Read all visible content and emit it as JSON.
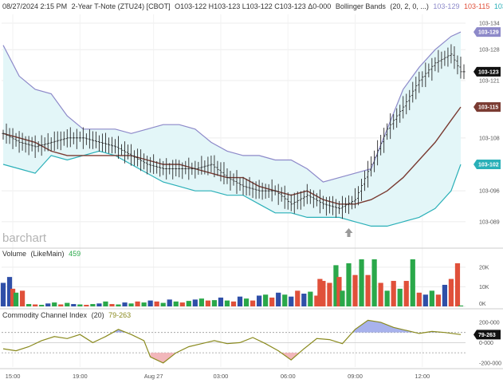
{
  "header": {
    "date": "08/27/2024 2:15 PM",
    "symbol": "2-Year T-Note (ZTU24) [CBOT]",
    "ohlc": "O103-122 H103-123 L103-122 C103-123 Δ0-000",
    "indicator": "Bollinger Bands",
    "params": "(20, 2, 0, ...)",
    "upper_value": "103-129",
    "middle_value": "103-115",
    "lower_value": "103-102"
  },
  "logo": "barchart",
  "colors": {
    "upper_band": "#8d89c9",
    "middle_band": "#7a3b32",
    "lower_band": "#2ab0b8",
    "band_fill": "#e3f6f8",
    "price_bar": "#2b2b2b",
    "price_tag": "#111111",
    "vol_up": "#2aa84a",
    "vol_down": "#e0503a",
    "vol_neutral": "#2f4fa8",
    "cci_line": "#8a8a1e",
    "cci_pos_fill": "#a8b2ec",
    "cci_neg_fill": "#f2b7bb",
    "grid": "#ececec"
  },
  "icons": {
    "arrow": "up-arrow-icon"
  },
  "chart_data": [
    {
      "type": "line",
      "panel": "price",
      "title": "",
      "yticks": [
        "103-134",
        "103-128",
        "103-121",
        "103-108",
        "103-096",
        "103-089"
      ],
      "ytick_values": [
        103.134,
        103.128,
        103.121,
        103.108,
        103.096,
        103.089
      ],
      "ylim": [
        103.085,
        103.136
      ],
      "xticks": [
        "15:00",
        "19:00",
        "Aug 27",
        "03:00",
        "06:00",
        "09:00",
        "12:00"
      ],
      "xtick_index": [
        3,
        24,
        47,
        68,
        89,
        110,
        131
      ],
      "n_bars": 145,
      "upper_band": {
        "name": "103-129",
        "x": [
          0,
          5,
          10,
          15,
          20,
          25,
          30,
          35,
          40,
          45,
          50,
          55,
          60,
          65,
          70,
          75,
          80,
          85,
          90,
          95,
          100,
          105,
          110,
          115,
          120,
          125,
          130,
          135,
          140,
          143
        ],
        "y": [
          103.129,
          103.122,
          103.119,
          103.118,
          103.113,
          103.11,
          103.11,
          103.11,
          103.109,
          103.11,
          103.111,
          103.111,
          103.11,
          103.107,
          103.105,
          103.104,
          103.104,
          103.103,
          103.103,
          103.101,
          103.098,
          103.099,
          103.1,
          103.101,
          103.11,
          103.119,
          103.124,
          103.128,
          103.131,
          103.132
        ]
      },
      "middle_band": {
        "name": "103-115",
        "x": [
          0,
          5,
          10,
          15,
          20,
          25,
          30,
          35,
          40,
          45,
          50,
          55,
          60,
          65,
          70,
          75,
          80,
          85,
          90,
          95,
          100,
          105,
          110,
          115,
          120,
          125,
          130,
          135,
          140,
          143
        ],
        "y": [
          103.109,
          103.108,
          103.107,
          103.105,
          103.104,
          103.104,
          103.104,
          103.104,
          103.104,
          103.103,
          103.102,
          103.102,
          103.101,
          103.1,
          103.099,
          103.099,
          103.097,
          103.096,
          103.095,
          103.096,
          103.094,
          103.093,
          103.093,
          103.094,
          103.096,
          103.099,
          103.103,
          103.107,
          103.112,
          103.115
        ]
      },
      "lower_band": {
        "name": "103-102",
        "x": [
          0,
          5,
          10,
          15,
          20,
          25,
          30,
          35,
          40,
          45,
          50,
          55,
          60,
          65,
          70,
          75,
          80,
          85,
          90,
          95,
          100,
          105,
          110,
          115,
          120,
          125,
          130,
          135,
          140,
          143
        ],
        "y": [
          103.102,
          103.101,
          103.1,
          103.104,
          103.103,
          103.104,
          103.105,
          103.104,
          103.102,
          103.1,
          103.098,
          103.097,
          103.096,
          103.096,
          103.095,
          103.095,
          103.093,
          103.091,
          103.091,
          103.09,
          103.09,
          103.09,
          103.089,
          103.088,
          103.088,
          103.089,
          103.09,
          103.092,
          103.096,
          103.102
        ]
      },
      "price_path": {
        "x": [
          0,
          5,
          10,
          15,
          20,
          25,
          30,
          35,
          40,
          45,
          50,
          55,
          60,
          65,
          70,
          75,
          80,
          85,
          90,
          95,
          100,
          105,
          110,
          115,
          120,
          125,
          130,
          135,
          140,
          143
        ],
        "y": [
          103.109,
          103.107,
          103.106,
          103.107,
          103.108,
          103.108,
          103.107,
          103.106,
          103.104,
          103.102,
          103.101,
          103.101,
          103.101,
          103.102,
          103.099,
          103.097,
          103.096,
          103.096,
          103.093,
          103.095,
          103.093,
          103.092,
          103.094,
          103.102,
          103.11,
          103.115,
          103.121,
          103.125,
          103.127,
          103.123
        ]
      },
      "last_price": "103-123",
      "last_value": 103.123,
      "annotation_index": 108
    },
    {
      "type": "bar",
      "panel": "volume",
      "title": "Volume",
      "subtitle": "(LikeMain)",
      "last_value": "459",
      "yticks": [
        "20K",
        "10K",
        "0K"
      ],
      "ytick_values": [
        20000,
        10000,
        0
      ],
      "ylim": [
        0,
        24000
      ],
      "x": [
        0,
        2,
        3,
        4,
        6,
        8,
        10,
        12,
        14,
        16,
        18,
        20,
        22,
        24,
        26,
        28,
        30,
        32,
        34,
        36,
        38,
        40,
        42,
        44,
        46,
        48,
        50,
        52,
        54,
        56,
        58,
        60,
        62,
        64,
        66,
        68,
        70,
        72,
        74,
        76,
        78,
        80,
        82,
        84,
        86,
        88,
        90,
        92,
        94,
        96,
        98,
        99,
        100,
        102,
        104,
        105,
        106,
        108,
        110,
        112,
        114,
        116,
        118,
        120,
        122,
        124,
        126,
        128,
        130,
        132,
        134,
        136,
        138,
        140,
        142,
        143
      ],
      "values": [
        12000,
        15000,
        9000,
        7000,
        8000,
        1200,
        1000,
        800,
        1500,
        2000,
        1000,
        1800,
        1200,
        1000,
        800,
        1200,
        1500,
        2500,
        1200,
        1000,
        2000,
        1500,
        2500,
        2000,
        3000,
        2500,
        1800,
        3500,
        2500,
        2000,
        2800,
        3500,
        4000,
        3000,
        3200,
        4500,
        3000,
        2500,
        5000,
        4000,
        3000,
        5500,
        6000,
        4500,
        7000,
        6000,
        5000,
        8000,
        6500,
        7500,
        5500,
        14000,
        13000,
        12000,
        21000,
        15000,
        8000,
        22000,
        16000,
        24000,
        16000,
        24000,
        12000,
        8000,
        13000,
        9000,
        13000,
        24000,
        7000,
        6000,
        8000,
        6000,
        11000,
        14000,
        22000,
        459
      ],
      "colors": [
        "n",
        "n",
        "d",
        "u",
        "d",
        "u",
        "d",
        "u",
        "n",
        "u",
        "d",
        "u",
        "n",
        "u",
        "d",
        "u",
        "n",
        "u",
        "d",
        "u",
        "n",
        "u",
        "d",
        "u",
        "n",
        "d",
        "u",
        "n",
        "u",
        "d",
        "u",
        "n",
        "u",
        "d",
        "u",
        "n",
        "u",
        "d",
        "n",
        "u",
        "d",
        "n",
        "u",
        "d",
        "n",
        "u",
        "n",
        "d",
        "n",
        "u",
        "d",
        "d",
        "d",
        "d",
        "u",
        "d",
        "u",
        "u",
        "d",
        "u",
        "d",
        "u",
        "d",
        "u",
        "d",
        "u",
        "d",
        "u",
        "d",
        "n",
        "u",
        "d",
        "n",
        "d",
        "d",
        "u"
      ]
    },
    {
      "type": "line",
      "panel": "cci",
      "title": "Commodity Channel Index",
      "subtitle": "(20)",
      "last_value": "79-263",
      "yticks": [
        "200-000",
        "0-000",
        "-200-000"
      ],
      "ytick_values": [
        200,
        0,
        -200
      ],
      "reference_lines": [
        100,
        -100
      ],
      "ylim": [
        -240,
        270
      ],
      "x": [
        0,
        4,
        8,
        12,
        16,
        20,
        24,
        28,
        32,
        36,
        40,
        44,
        46,
        50,
        54,
        58,
        62,
        66,
        70,
        74,
        78,
        82,
        86,
        90,
        94,
        98,
        102,
        106,
        110,
        114,
        118,
        122,
        126,
        130,
        134,
        138,
        143
      ],
      "values": [
        -60,
        -80,
        -40,
        20,
        60,
        40,
        80,
        0,
        60,
        130,
        80,
        20,
        -140,
        -200,
        -100,
        -40,
        -10,
        20,
        -10,
        0,
        50,
        -10,
        -80,
        -170,
        -60,
        40,
        30,
        -10,
        130,
        220,
        200,
        150,
        120,
        90,
        110,
        100,
        79
      ]
    }
  ]
}
